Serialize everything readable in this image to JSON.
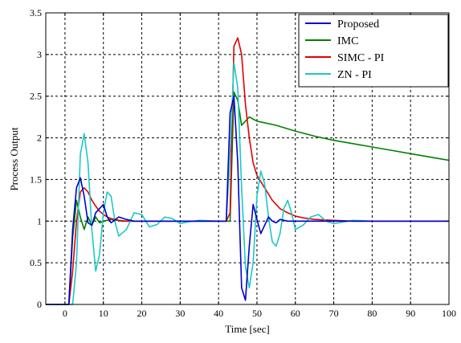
{
  "chart_data": {
    "type": "line",
    "title": "",
    "xlabel": "Time [sec]",
    "ylabel": "Process Output",
    "xlim": [
      -5,
      100
    ],
    "ylim": [
      0,
      3.5
    ],
    "xticks": [
      0,
      10,
      20,
      30,
      40,
      50,
      60,
      70,
      80,
      90,
      100
    ],
    "yticks": [
      0,
      0.5,
      1,
      1.5,
      2,
      2.5,
      3,
      3.5
    ],
    "xtick_labels": [
      "0",
      "10",
      "20",
      "30",
      "40",
      "50",
      "60",
      "70",
      "80",
      "90",
      "100"
    ],
    "ytick_labels": [
      "0",
      "0.5",
      "1",
      "1.5",
      "2",
      "2.5",
      "3",
      "3.5"
    ],
    "grid": true,
    "legend_position": "top-right",
    "series": [
      {
        "name": "Proposed",
        "color": "#0000CC",
        "x": [
          -5,
          0,
          1,
          2,
          3,
          4,
          5,
          6,
          7,
          8,
          9,
          10,
          11,
          12,
          14,
          16,
          18,
          20,
          25,
          30,
          35,
          40,
          41,
          42,
          43,
          44,
          45,
          46,
          47,
          48,
          49,
          50,
          51,
          52,
          53,
          54,
          55,
          56,
          58,
          60,
          65,
          70,
          75,
          80,
          90,
          100
        ],
        "y": [
          0,
          0,
          0,
          0.9,
          1.4,
          1.52,
          1.3,
          0.98,
          0.95,
          1.1,
          1.15,
          1.2,
          1.05,
          0.98,
          1.05,
          1.02,
          1.0,
          1.0,
          1.0,
          1.0,
          1.0,
          1.0,
          1.0,
          1.0,
          2.3,
          2.5,
          1.7,
          0.2,
          0.05,
          0.7,
          1.2,
          1.02,
          0.85,
          0.95,
          1.05,
          1.0,
          0.98,
          1.02,
          1.0,
          1.0,
          1.0,
          1.0,
          1.0,
          1.0,
          1.0,
          1.0
        ]
      },
      {
        "name": "IMC",
        "color": "#008000",
        "x": [
          -5,
          0,
          1,
          2,
          3,
          4,
          5,
          6,
          7,
          8,
          9,
          10,
          12,
          15,
          20,
          25,
          30,
          35,
          40,
          41,
          42,
          43,
          44,
          45,
          46,
          47,
          48,
          50,
          55,
          60,
          65,
          70,
          75,
          80,
          85,
          90,
          95,
          100
        ],
        "y": [
          0,
          0,
          0,
          0.8,
          1.25,
          1.05,
          0.9,
          1.05,
          0.95,
          1.05,
          0.98,
          1.0,
          1.02,
          1.0,
          1.0,
          1.0,
          1.0,
          1.0,
          1.0,
          1.0,
          1.0,
          1.0,
          2.55,
          2.45,
          2.15,
          2.2,
          2.25,
          2.2,
          2.15,
          2.08,
          2.02,
          1.97,
          1.93,
          1.89,
          1.85,
          1.81,
          1.77,
          1.73
        ]
      },
      {
        "name": "SIMC - PI",
        "color": "#E00000",
        "x": [
          -5,
          0,
          1,
          2,
          3,
          4,
          5,
          6,
          7,
          8,
          9,
          10,
          11,
          12,
          13,
          14,
          16,
          18,
          20,
          25,
          30,
          35,
          40,
          41,
          42,
          43,
          44,
          45,
          46,
          47,
          48,
          49,
          50,
          52,
          54,
          56,
          58,
          60,
          62,
          65,
          70,
          75,
          80,
          90,
          100
        ],
        "y": [
          0,
          0,
          0,
          0.4,
          1.0,
          1.35,
          1.4,
          1.35,
          1.25,
          1.18,
          1.12,
          1.08,
          1.05,
          1.03,
          1.02,
          1.01,
          1.0,
          1.0,
          1.0,
          1.0,
          1.0,
          1.0,
          1.0,
          1.0,
          1.0,
          1.1,
          3.1,
          3.2,
          3.0,
          2.4,
          2.0,
          1.7,
          1.55,
          1.4,
          1.25,
          1.15,
          1.1,
          1.06,
          1.04,
          1.02,
          1.01,
          1.0,
          1.0,
          1.0,
          1.0
        ]
      },
      {
        "name": "ZN - PI",
        "color": "#1CC8C8",
        "x": [
          -5,
          0,
          1,
          2,
          3,
          4,
          5,
          6,
          7,
          8,
          9,
          10,
          11,
          12,
          13,
          14,
          16,
          18,
          20,
          22,
          24,
          26,
          28,
          30,
          32,
          35,
          40,
          41,
          42,
          43,
          44,
          45,
          46,
          47,
          48,
          49,
          50,
          51,
          52,
          53,
          54,
          55,
          56,
          57,
          58,
          59,
          60,
          62,
          64,
          66,
          68,
          70,
          75,
          80,
          90,
          100
        ],
        "y": [
          0,
          0,
          0,
          0,
          0.5,
          1.8,
          2.05,
          1.7,
          0.9,
          0.4,
          0.6,
          1.1,
          1.35,
          1.3,
          1.0,
          0.82,
          0.9,
          1.1,
          1.08,
          0.93,
          0.96,
          1.05,
          1.03,
          0.97,
          0.99,
          1.01,
          1.0,
          1.0,
          1.0,
          1.8,
          2.9,
          2.6,
          1.4,
          0.45,
          0.2,
          0.5,
          1.3,
          1.6,
          1.45,
          1.05,
          0.75,
          0.7,
          0.85,
          1.15,
          1.25,
          1.1,
          0.9,
          0.95,
          1.05,
          1.08,
          1.0,
          0.97,
          1.01,
          1.0,
          1.0,
          1.0
        ]
      }
    ]
  }
}
